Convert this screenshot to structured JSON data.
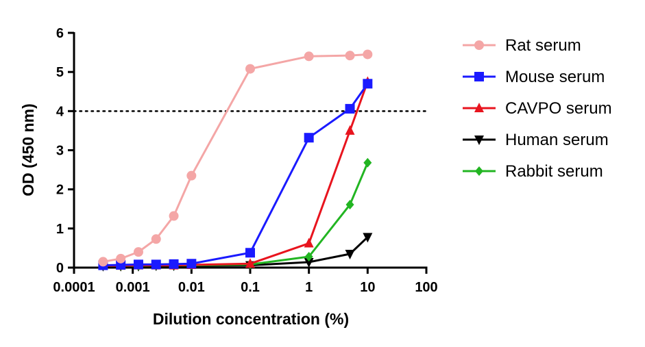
{
  "chart_data": {
    "type": "line",
    "title": "",
    "xlabel": "Dilution concentration (%)",
    "ylabel": "OD (450 nm)",
    "xscale": "log",
    "xlim": [
      0.0001,
      100
    ],
    "ylim": [
      0,
      6
    ],
    "x_ticks": [
      0.0001,
      0.001,
      0.01,
      0.1,
      1,
      10,
      100
    ],
    "x_tick_labels": [
      "0.0001",
      "0.001",
      "0.01",
      "0.1",
      "1",
      "10",
      "100"
    ],
    "y_ticks": [
      0,
      1,
      2,
      3,
      4,
      5,
      6
    ],
    "y_tick_labels": [
      "0",
      "1",
      "2",
      "3",
      "4",
      "5",
      "6"
    ],
    "reference_line": {
      "y": 4,
      "style": "dotted",
      "color": "#000000"
    },
    "grid": false,
    "legend_position": "right",
    "series": [
      {
        "name": "Rat serum",
        "color": "#f4a6a6",
        "marker": "circle",
        "x": [
          0.0003125,
          0.000625,
          0.00125,
          0.0025,
          0.005,
          0.01,
          0.1,
          1,
          5,
          10
        ],
        "y": [
          0.15,
          0.23,
          0.4,
          0.73,
          1.32,
          2.35,
          5.08,
          5.4,
          5.42,
          5.45
        ]
      },
      {
        "name": "Mouse serum",
        "color": "#1a1aff",
        "marker": "square",
        "x": [
          0.0003125,
          0.000625,
          0.00125,
          0.0025,
          0.005,
          0.01,
          0.1,
          1,
          5,
          10
        ],
        "y": [
          0.06,
          0.07,
          0.08,
          0.08,
          0.09,
          0.1,
          0.38,
          3.32,
          4.06,
          4.7
        ]
      },
      {
        "name": "CAVPO serum",
        "color": "#e8141e",
        "marker": "triangle-up",
        "x": [
          0.0003125,
          0.000625,
          0.00125,
          0.0025,
          0.005,
          0.01,
          0.1,
          1,
          5,
          10
        ],
        "y": [
          0.05,
          0.05,
          0.06,
          0.06,
          0.06,
          0.07,
          0.1,
          0.62,
          3.5,
          4.75
        ]
      },
      {
        "name": "Human serum",
        "color": "#000000",
        "marker": "triangle-down",
        "x": [
          0.0003125,
          0.000625,
          0.00125,
          0.0025,
          0.005,
          0.01,
          0.1,
          1,
          5,
          10
        ],
        "y": [
          0.04,
          0.04,
          0.04,
          0.05,
          0.05,
          0.05,
          0.06,
          0.14,
          0.35,
          0.78
        ]
      },
      {
        "name": "Rabbit serum",
        "color": "#22b522",
        "marker": "diamond",
        "x": [
          0.0003125,
          0.000625,
          0.00125,
          0.0025,
          0.005,
          0.01,
          0.1,
          1,
          5,
          10
        ],
        "y": [
          0.05,
          0.05,
          0.05,
          0.06,
          0.06,
          0.06,
          0.08,
          0.28,
          1.61,
          2.68
        ]
      }
    ]
  }
}
